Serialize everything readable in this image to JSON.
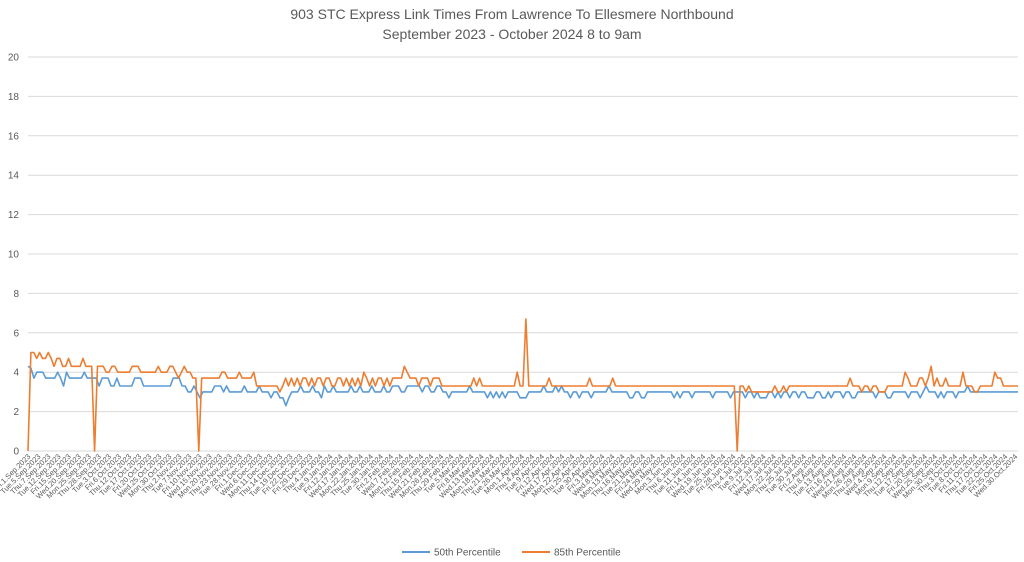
{
  "chart_data": {
    "type": "line",
    "title": "903 STC Express Link Times From Lawrence To Ellesmere Northbound",
    "subtitle": "September 2023 - October 2024 8 to 9am",
    "ylim": [
      0,
      20
    ],
    "yticks": [
      0,
      2,
      4,
      6,
      8,
      10,
      12,
      14,
      16,
      18,
      20
    ],
    "grid": true,
    "legend_position": "bottom",
    "colors": {
      "p50": "#5b9bd5",
      "p85": "#ed7d31",
      "grid": "#d9d9d9",
      "text": "#595959"
    },
    "x_tick_labels": [
      "Fri.1.Sep.2023",
      "Tue.5.Sep.2023",
      "Thu.7.Sep.2023",
      "Tue.12.Sep.2023",
      "Fri.15.Sep.2023",
      "Wed.20.Sep.2023",
      "Mon.25.Sep.2023",
      "Thu.28.Sep.2023",
      "Tue.3.Oct.2023",
      "Fri.6.Oct.2023",
      "Thu.12.Oct.2023",
      "Tue.17.Oct.2023",
      "Fri.20.Oct.2023",
      "Wed.25.Oct.2023",
      "Mon.30.Oct.2023",
      "Thu.2.Nov.2023",
      "Tue.7.Nov.2023",
      "Fri.10.Nov.2023",
      "Wed.15.Nov.2023",
      "Mon.20.Nov.2023",
      "Thu.23.Nov.2023",
      "Tue.28.Nov.2023",
      "Fri.1.Dec.2023",
      "Wed.6.Dec.2023",
      "Mon.11.Dec.2023",
      "Thu.14.Dec.2023",
      "Tue.19.Dec.2023",
      "Fri.22.Dec.2023",
      "Fri.29.Dec.2023",
      "Thu.4.Jan.2024",
      "Tue.9.Jan.2024",
      "Fri.12.Jan.2024",
      "Wed.17.Jan.2024",
      "Mon.22.Jan.2024",
      "Thu.25.Jan.2024",
      "Tue.30.Jan.2024",
      "Fri.2.Feb.2024",
      "Wed.7.Feb.2024",
      "Mon.12.Feb.2024",
      "Thu.15.Feb.2024",
      "Wed.21.Feb.2024",
      "Mon.26.Feb.2024",
      "Thu.29.Feb.2024",
      "Tue.5.Mar.2024",
      "Fri.8.Mar.2024",
      "Wed.13.Mar.2024",
      "Mon.18.Mar.2024",
      "Thu.21.Mar.2024",
      "Tue.26.Mar.2024",
      "Mon.1.Apr.2024",
      "Thu.4.Apr.2024",
      "Tue.9.Apr.2024",
      "Fri.12.Apr.2024",
      "Wed.17.Apr.2024",
      "Mon.22.Apr.2024",
      "Thu.25.Apr.2024",
      "Tue.30.Apr.2024",
      "Fri.3.May.2024",
      "Wed.8.May.2024",
      "Mon.13.May.2024",
      "Thu.16.May.2024",
      "Tue.21.May.2024",
      "Fri.24.May.2024",
      "Wed.29.May.2024",
      "Mon.3.Jun.2024",
      "Thu.6.Jun.2024",
      "Tue.11.Jun.2024",
      "Fri.14.Jun.2024",
      "Wed.19.Jun.2024",
      "Tue.25.Jun.2024",
      "Fri.28.Jun.2024",
      "Thu.4.Jul.2024",
      "Tue.9.Jul.2024",
      "Fri.12.Jul.2024",
      "Wed.17.Jul.2024",
      "Mon.22.Jul.2024",
      "Thu.25.Jul.2024",
      "Tue.30.Jul.2024",
      "Fri.2.Aug.2024",
      "Thu.8.Aug.2024",
      "Tue.13.Aug.2024",
      "Fri.16.Aug.2024",
      "Wed.21.Aug.2024",
      "Mon.26.Aug.2024",
      "Thu.29.Aug.2024",
      "Wed.4.Sep.2024",
      "Mon.9.Sep.2024",
      "Thu.12.Sep.2024",
      "Tue.17.Sep.2024",
      "Fri.20.Sep.2024",
      "Wed.25.Sep.2024",
      "Mon.30.Sep.2024",
      "Thu.3.Oct.2024",
      "Tue.8.Oct.2024",
      "Fri.11.Oct.2024",
      "Thu.17.Oct.2024",
      "Tue.22.Oct.2024",
      "Fri.25.Oct.2024",
      "Wed.30.Oct.2024"
    ],
    "series": [
      {
        "name": "50th Percentile",
        "color": "#5b9bd5",
        "values": [
          4.3,
          4.2,
          3.7,
          4.0,
          4.0,
          4.0,
          3.7,
          3.7,
          3.7,
          3.7,
          4.0,
          3.7,
          3.3,
          4.0,
          3.7,
          3.7,
          3.7,
          3.7,
          3.7,
          4.0,
          3.7,
          3.7,
          3.7,
          3.7,
          3.3,
          3.7,
          3.7,
          3.7,
          3.3,
          3.3,
          3.7,
          3.3,
          3.3,
          3.3,
          3.3,
          3.3,
          3.7,
          3.7,
          3.7,
          3.3,
          3.3,
          3.3,
          3.3,
          3.3,
          3.3,
          3.3,
          3.3,
          3.3,
          3.3,
          3.7,
          3.7,
          3.7,
          3.3,
          3.3,
          3.0,
          3.0,
          3.3,
          3.0,
          2.7,
          3.0,
          3.0,
          3.0,
          3.0,
          3.3,
          3.3,
          3.3,
          3.0,
          3.3,
          3.0,
          3.0,
          3.0,
          3.0,
          3.0,
          3.3,
          3.0,
          3.0,
          3.0,
          3.0,
          3.3,
          3.0,
          3.0,
          3.0,
          2.7,
          3.0,
          3.0,
          2.7,
          2.7,
          2.3,
          2.7,
          3.0,
          3.0,
          3.0,
          3.3,
          3.0,
          3.0,
          3.0,
          3.3,
          3.0,
          3.0,
          2.7,
          3.3,
          3.0,
          3.0,
          3.3,
          3.0,
          3.0,
          3.0,
          3.0,
          3.0,
          3.3,
          3.0,
          3.0,
          3.3,
          3.0,
          3.0,
          3.0,
          3.3,
          3.0,
          3.0,
          3.0,
          3.3,
          3.0,
          3.0,
          3.3,
          3.3,
          3.3,
          3.0,
          3.0,
          3.3,
          3.3,
          3.3,
          3.3,
          3.3,
          3.0,
          3.3,
          3.3,
          3.0,
          3.0,
          3.3,
          3.3,
          3.0,
          3.0,
          2.7,
          3.0,
          3.0,
          3.0,
          3.0,
          3.0,
          3.0,
          3.3,
          3.0,
          3.0,
          3.0,
          3.0,
          3.0,
          2.7,
          3.0,
          2.7,
          3.0,
          2.7,
          3.0,
          2.7,
          3.0,
          3.0,
          3.0,
          3.0,
          2.7,
          2.7,
          2.7,
          3.0,
          3.0,
          3.0,
          3.0,
          3.0,
          3.3,
          3.0,
          3.0,
          3.0,
          3.3,
          3.0,
          3.3,
          3.0,
          3.0,
          2.7,
          3.0,
          3.0,
          2.7,
          3.0,
          3.0,
          3.0,
          2.7,
          3.0,
          3.0,
          3.0,
          3.0,
          3.0,
          3.3,
          3.0,
          3.0,
          3.0,
          3.0,
          3.0,
          3.0,
          2.7,
          2.7,
          3.0,
          3.0,
          2.7,
          2.7,
          3.0,
          3.0,
          3.0,
          3.0,
          3.0,
          3.0,
          3.0,
          3.0,
          3.0,
          2.7,
          3.0,
          2.7,
          3.0,
          3.0,
          3.0,
          2.7,
          3.0,
          3.0,
          3.0,
          3.0,
          3.0,
          3.0,
          2.7,
          3.0,
          3.0,
          3.0,
          3.0,
          3.0,
          2.7,
          3.0,
          3.0,
          3.0,
          3.0,
          2.7,
          3.0,
          3.0,
          2.7,
          3.0,
          2.7,
          2.7,
          2.7,
          3.0,
          3.0,
          2.7,
          3.0,
          2.7,
          3.0,
          3.0,
          2.7,
          3.0,
          3.0,
          2.7,
          3.0,
          3.0,
          2.7,
          2.7,
          2.7,
          3.0,
          3.0,
          2.7,
          2.7,
          3.0,
          2.7,
          3.0,
          3.0,
          3.0,
          2.7,
          3.0,
          3.0,
          2.7,
          2.7,
          3.0,
          3.0,
          3.0,
          3.0,
          3.0,
          3.0,
          2.7,
          3.0,
          3.0,
          3.0,
          2.7,
          2.7,
          3.0,
          3.0,
          3.0,
          3.0,
          3.0,
          2.7,
          3.0,
          3.0,
          3.0,
          2.7,
          3.0,
          3.3,
          3.0,
          3.0,
          3.0,
          2.7,
          3.0,
          2.7,
          3.0,
          3.0,
          3.0,
          2.7,
          3.0,
          3.0,
          3.0,
          3.3,
          3.0,
          3.0,
          3.0,
          3.0,
          3.0,
          3.0,
          3.0,
          3.0,
          3.0,
          3.0,
          3.0,
          3.0,
          3.0,
          3.0,
          3.0,
          3.0,
          3.0
        ]
      },
      {
        "name": "85th Percentile",
        "color": "#ed7d31",
        "values": [
          0,
          5.0,
          5.0,
          4.7,
          5.0,
          4.7,
          4.7,
          5.0,
          4.7,
          4.3,
          4.7,
          4.7,
          4.3,
          4.3,
          4.7,
          4.3,
          4.3,
          4.3,
          4.3,
          4.7,
          4.3,
          4.3,
          4.3,
          0,
          4.3,
          4.3,
          4.3,
          4.0,
          4.0,
          4.3,
          4.3,
          4.0,
          4.0,
          4.0,
          4.0,
          4.0,
          4.3,
          4.3,
          4.3,
          4.0,
          4.0,
          4.0,
          4.0,
          4.0,
          4.0,
          4.3,
          4.0,
          4.0,
          4.0,
          4.3,
          4.3,
          4.0,
          3.7,
          4.0,
          4.3,
          4.0,
          4.0,
          3.7,
          3.7,
          0,
          3.7,
          3.7,
          3.7,
          3.7,
          3.7,
          3.7,
          3.7,
          4.0,
          4.0,
          3.7,
          3.7,
          3.7,
          3.7,
          4.0,
          3.7,
          3.7,
          3.7,
          3.7,
          4.0,
          3.3,
          3.3,
          3.3,
          3.3,
          3.3,
          3.3,
          3.3,
          3.3,
          3.0,
          3.3,
          3.7,
          3.3,
          3.7,
          3.3,
          3.7,
          3.3,
          3.7,
          3.7,
          3.3,
          3.7,
          3.3,
          3.7,
          3.7,
          3.3,
          3.7,
          3.7,
          3.3,
          3.3,
          3.7,
          3.7,
          3.3,
          3.7,
          3.3,
          3.7,
          3.3,
          3.7,
          3.3,
          4.0,
          3.7,
          3.3,
          3.7,
          3.3,
          3.7,
          3.7,
          3.3,
          3.7,
          3.3,
          3.7,
          3.7,
          3.7,
          3.7,
          4.3,
          4.0,
          3.7,
          3.7,
          3.7,
          3.3,
          3.7,
          3.7,
          3.7,
          3.3,
          3.7,
          3.7,
          3.7,
          3.3,
          3.3,
          3.3,
          3.3,
          3.3,
          3.3,
          3.3,
          3.3,
          3.3,
          3.3,
          3.3,
          3.7,
          3.3,
          3.7,
          3.3,
          3.3,
          3.3,
          3.3,
          3.3,
          3.3,
          3.3,
          3.3,
          3.3,
          3.3,
          3.3,
          3.3,
          4.0,
          3.3,
          3.3,
          6.7,
          3.3,
          3.3,
          3.3,
          3.3,
          3.3,
          3.3,
          3.3,
          3.7,
          3.3,
          3.3,
          3.3,
          3.3,
          3.3,
          3.3,
          3.3,
          3.3,
          3.3,
          3.3,
          3.3,
          3.3,
          3.3,
          3.7,
          3.3,
          3.3,
          3.3,
          3.3,
          3.3,
          3.3,
          3.3,
          3.7,
          3.3,
          3.3,
          3.3,
          3.3,
          3.3,
          3.3,
          3.3,
          3.3,
          3.3,
          3.3,
          3.3,
          3.3,
          3.3,
          3.3,
          3.3,
          3.3,
          3.3,
          3.3,
          3.3,
          3.3,
          3.3,
          3.3,
          3.3,
          3.3,
          3.3,
          3.3,
          3.3,
          3.3,
          3.3,
          3.3,
          3.3,
          3.3,
          3.3,
          3.3,
          3.3,
          3.3,
          3.3,
          3.3,
          3.3,
          3.3,
          3.3,
          3.3,
          0,
          3.3,
          3.3,
          3.0,
          3.3,
          3.0,
          3.0,
          3.0,
          3.0,
          3.0,
          3.0,
          3.0,
          3.0,
          3.3,
          3.0,
          3.0,
          3.3,
          3.0,
          3.3,
          3.3,
          3.3,
          3.3,
          3.3,
          3.3,
          3.3,
          3.3,
          3.3,
          3.3,
          3.3,
          3.3,
          3.3,
          3.3,
          3.3,
          3.3,
          3.3,
          3.3,
          3.3,
          3.3,
          3.3,
          3.7,
          3.3,
          3.3,
          3.3,
          3.0,
          3.3,
          3.3,
          3.0,
          3.3,
          3.3,
          3.0,
          3.0,
          3.0,
          3.3,
          3.3,
          3.3,
          3.3,
          3.3,
          3.3,
          4.0,
          3.7,
          3.3,
          3.3,
          3.3,
          3.7,
          3.7,
          3.3,
          3.7,
          4.3,
          3.3,
          3.7,
          3.3,
          3.3,
          3.7,
          3.3,
          3.3,
          3.3,
          3.3,
          3.3,
          4.0,
          3.3,
          3.3,
          3.3,
          3.0,
          3.0,
          3.3,
          3.3,
          3.3,
          3.3,
          3.3,
          4.0,
          3.7,
          3.7,
          3.3,
          3.3,
          3.3,
          3.3,
          3.3,
          3.3
        ]
      }
    ]
  }
}
